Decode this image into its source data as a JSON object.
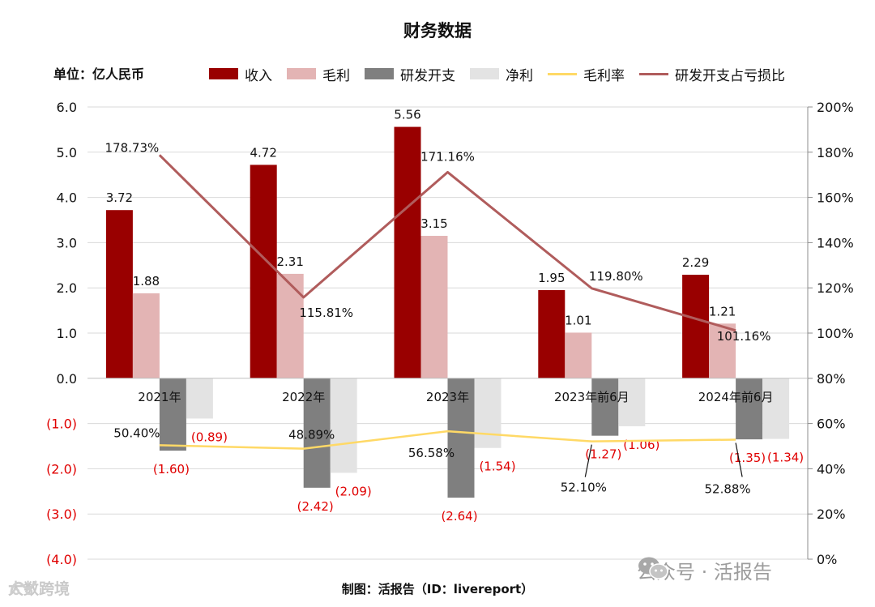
{
  "title": "财务数据",
  "unit_label": "单位：亿人民币",
  "footer": "制图：活报告（ID：livereport）",
  "watermark_right": "公众号 · 活报告",
  "watermark_left": "大数跨境",
  "colors": {
    "revenue": "#990000",
    "gross_profit": "#e3b4b4",
    "rd": "#7f7f7f",
    "net": "#e3e3e3",
    "gross_margin": "#ffd966",
    "rd_ratio": "#b05c5c",
    "negative_label": "#e00000",
    "grid": "#d9d9d9"
  },
  "legend": [
    {
      "name": "收入",
      "kind": "bar",
      "color": "#990000"
    },
    {
      "name": "毛利",
      "kind": "bar",
      "color": "#e3b4b4"
    },
    {
      "name": "研发开支",
      "kind": "bar",
      "color": "#7f7f7f"
    },
    {
      "name": "净利",
      "kind": "bar",
      "color": "#e3e3e3"
    },
    {
      "name": "毛利率",
      "kind": "line",
      "color": "#ffd966"
    },
    {
      "name": "研发开支占亏损比",
      "kind": "line",
      "color": "#b05c5c"
    }
  ],
  "chart_data": {
    "type": "bar",
    "title": "财务数据",
    "categories": [
      "2021年",
      "2022年",
      "2023年",
      "2023年前6月",
      "2024年前6月"
    ],
    "y_left": {
      "range": [
        -4.0,
        6.0
      ],
      "ticks": [
        6.0,
        5.0,
        4.0,
        3.0,
        2.0,
        1.0,
        0.0,
        -1.0,
        -2.0,
        -3.0,
        -4.0
      ],
      "tick_labels": [
        "6.0",
        "5.0",
        "4.0",
        "3.0",
        "2.0",
        "1.0",
        "0.0",
        "(1.0)",
        "(2.0)",
        "(3.0)",
        "(4.0)"
      ]
    },
    "y_right": {
      "range": [
        0,
        200
      ],
      "ticks": [
        200,
        180,
        160,
        140,
        120,
        100,
        80,
        60,
        40,
        20,
        0
      ],
      "tick_labels": [
        "200%",
        "180%",
        "160%",
        "140%",
        "120%",
        "100%",
        "80%",
        "60%",
        "40%",
        "20%",
        "0%"
      ]
    },
    "grid": true,
    "legend_position": "top",
    "series": [
      {
        "name": "收入",
        "kind": "bar",
        "axis": "left",
        "values": [
          3.72,
          4.72,
          5.56,
          1.95,
          2.29
        ],
        "labels": [
          "3.72",
          "4.72",
          "5.56",
          "1.95",
          "2.29"
        ]
      },
      {
        "name": "毛利",
        "kind": "bar",
        "axis": "left",
        "values": [
          1.88,
          2.31,
          3.15,
          1.01,
          1.21
        ],
        "labels": [
          "1.88",
          "2.31",
          "3.15",
          "1.01",
          "1.21"
        ]
      },
      {
        "name": "研发开支",
        "kind": "bar",
        "axis": "left",
        "values": [
          -1.6,
          -2.42,
          -2.64,
          -1.27,
          -1.35
        ],
        "labels": [
          "(1.60)",
          "(2.42)",
          "(2.64)",
          "(1.27)",
          "(1.35)"
        ]
      },
      {
        "name": "净利",
        "kind": "bar",
        "axis": "left",
        "values": [
          -0.89,
          -2.09,
          -1.54,
          -1.06,
          -1.34
        ],
        "labels": [
          "(0.89)",
          "(2.09)",
          "(1.54)",
          "(1.06)",
          "(1.34)"
        ]
      },
      {
        "name": "毛利率",
        "kind": "line",
        "axis": "right",
        "values": [
          50.4,
          48.89,
          56.58,
          52.1,
          52.88
        ],
        "labels": [
          "50.40%",
          "48.89%",
          "56.58%",
          "52.10%",
          "52.88%"
        ]
      },
      {
        "name": "研发开支占亏损比",
        "kind": "line",
        "axis": "right",
        "values": [
          178.73,
          115.81,
          171.16,
          119.8,
          101.16
        ],
        "labels": [
          "178.73%",
          "115.81%",
          "171.16%",
          "119.80%",
          "101.16%"
        ]
      }
    ]
  }
}
